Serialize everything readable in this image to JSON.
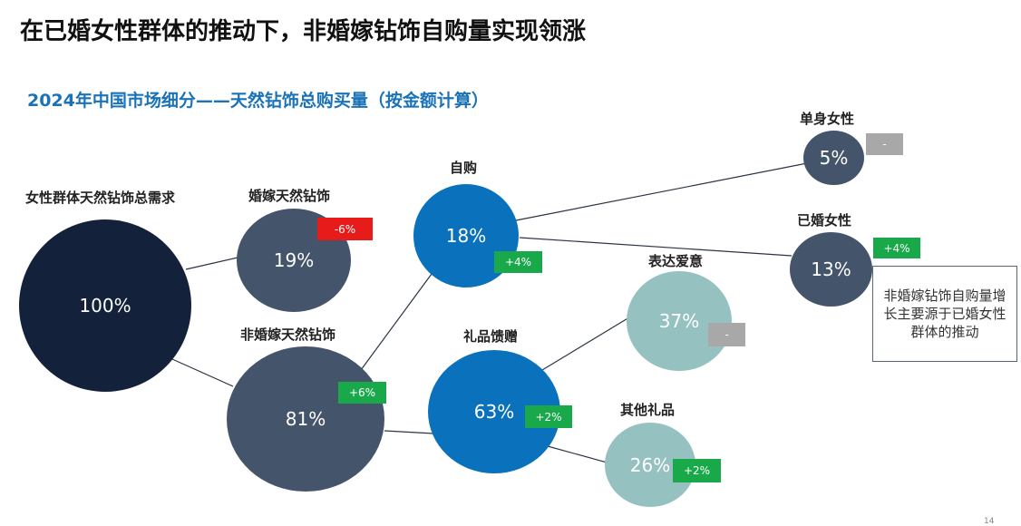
{
  "title": "在已婚女性群体的推动下，非婚嫁钻饰自购量实现领涨",
  "subtitle": "2024年中国市场细分——天然钻饰总购买量（按金额计算）",
  "nodes": {
    "total": {
      "label": "女性群体天然钻饰总需求",
      "value": "100%"
    },
    "bridal": {
      "label": "婚嫁天然钻饰",
      "value": "19%",
      "change": "-6%"
    },
    "non_bridal": {
      "label": "非婚嫁天然钻饰",
      "value": "81%",
      "change": "+6%"
    },
    "self_purchase": {
      "label": "自购",
      "value": "18%",
      "change": "+4%"
    },
    "gift": {
      "label": "礼品馈赠",
      "value": "63%",
      "change": "+2%"
    },
    "single_women": {
      "label": "单身女性",
      "value": "5%",
      "change": "-"
    },
    "married_women": {
      "label": "已婚女性",
      "value": "13%",
      "change": "+4%"
    },
    "express_love": {
      "label": "表达爱意",
      "value": "37%",
      "change": "-"
    },
    "other_gifts": {
      "label": "其他礼品",
      "value": "26%",
      "change": "+2%"
    }
  },
  "note": "非婚嫁钻饰自购量增长主要源于已婚女性群体的推动",
  "page_number": "14",
  "colors": {
    "total": "#14213a",
    "slate": "#44546b",
    "blue": "#0a72bd",
    "teal": "#96c1c1",
    "increase": "#19a94a",
    "decrease": "#e81b1b",
    "neutral": "#a8a8a8",
    "subtitle": "#1a73b8"
  }
}
